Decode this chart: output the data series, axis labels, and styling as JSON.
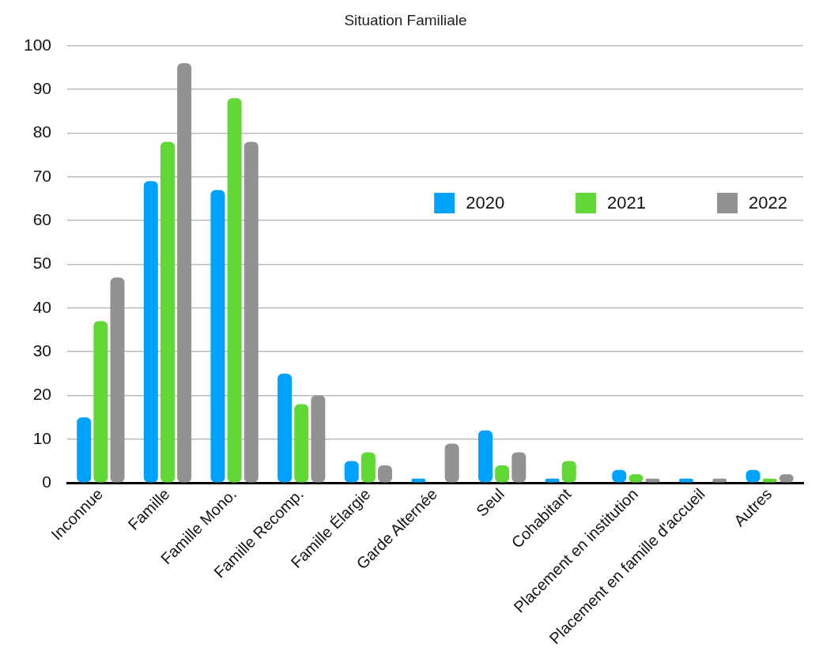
{
  "chart_data": {
    "type": "bar",
    "title": "Situation Familiale",
    "categories": [
      "Inconnue",
      "Famille",
      "Famille Mono.",
      "Famille Recomp.",
      "Famille Élargie",
      "Garde Alternée",
      "Seul",
      "Cohabitant",
      "Placement en institution",
      "Placement en famille d'accueil",
      "Autres"
    ],
    "series": [
      {
        "name": "2020",
        "color": "#00a2ff",
        "values": [
          15,
          69,
          67,
          25,
          5,
          1,
          12,
          1,
          3,
          1,
          3
        ]
      },
      {
        "name": "2021",
        "color": "#61d836",
        "values": [
          37,
          78,
          88,
          18,
          7,
          0,
          4,
          5,
          2,
          0,
          1
        ]
      },
      {
        "name": "2022",
        "color": "#929292",
        "values": [
          47,
          96,
          78,
          20,
          4,
          9,
          7,
          0,
          1,
          1,
          2
        ]
      }
    ],
    "ylim": [
      0,
      100
    ],
    "yticks": [
      0,
      10,
      20,
      30,
      40,
      50,
      60,
      70,
      80,
      90,
      100
    ],
    "grid": "y",
    "legend": "top right"
  }
}
